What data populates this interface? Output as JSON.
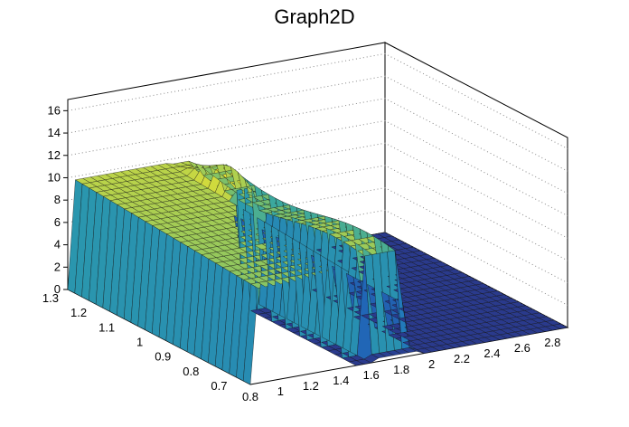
{
  "chart_data": {
    "type": "surface",
    "title": "Graph2D",
    "xlabel": "",
    "ylabel": "",
    "zlabel": "",
    "x_range": [
      0.8,
      2.9
    ],
    "y_range": [
      0.65,
      1.3
    ],
    "z_range": [
      0,
      17
    ],
    "x_ticks": [
      "0.8",
      "1",
      "1.2",
      "1.4",
      "1.6",
      "1.8",
      "2",
      "2.2",
      "2.4",
      "2.6",
      "2.8"
    ],
    "y_ticks": [
      "0.7",
      "0.8",
      "0.9",
      "1",
      "1.1",
      "1.2",
      "1.3"
    ],
    "z_ticks": [
      "0",
      "2",
      "4",
      "6",
      "8",
      "10",
      "12",
      "14",
      "16"
    ],
    "grid": true,
    "palette": "viridis-like (dark blue to yellow)",
    "surface_regions": [
      {
        "x": [
          0.8,
          1.45
        ],
        "y": [
          0.65,
          1.3
        ],
        "z_level": 9.5
      },
      {
        "x": [
          1.45,
          1.6
        ],
        "y": [
          1.1,
          1.3
        ],
        "z_level": 11.0
      },
      {
        "x": [
          1.6,
          1.85
        ],
        "y": [
          0.65,
          1.3
        ],
        "z_level": 9.0
      },
      {
        "x": [
          1.85,
          2.9
        ],
        "y": [
          0.65,
          1.3
        ],
        "z_level": 0
      }
    ],
    "peak": {
      "x": 1.55,
      "y": 1.15,
      "z": 11
    }
  }
}
